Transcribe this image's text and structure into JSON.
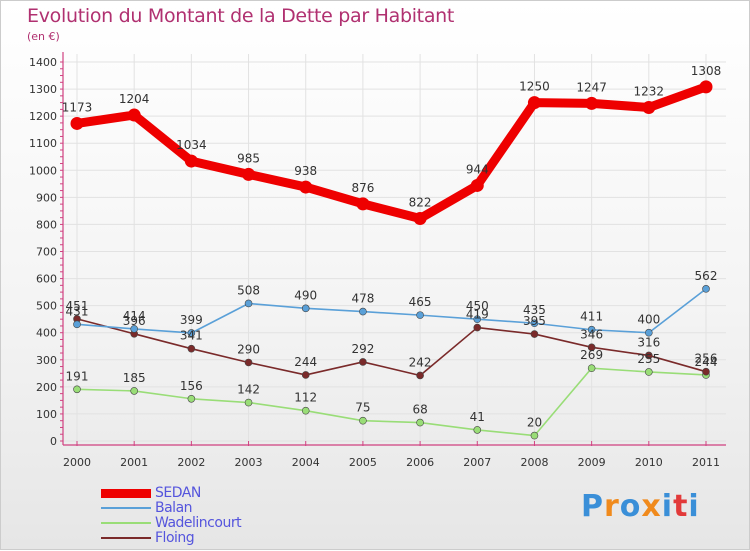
{
  "title": "Evolution du Montant de la Dette par Habitant",
  "subtitle": "(en €)",
  "logo": {
    "text": "Proxiti",
    "colors": [
      "#3a8fd8",
      "#f08a1c",
      "#3a8fd8",
      "#f08a1c",
      "#3a8fd8",
      "#e23a3a",
      "#3a8fd8"
    ]
  },
  "chart_data": {
    "type": "line",
    "x": [
      "2000",
      "2001",
      "2002",
      "2003",
      "2004",
      "2005",
      "2006",
      "2007",
      "2008",
      "2009",
      "2010",
      "2011"
    ],
    "ylim": [
      0,
      1400
    ],
    "yticks": [
      "0",
      "100",
      "200",
      "300",
      "400",
      "500",
      "600",
      "700",
      "800",
      "900",
      "1000",
      "1100",
      "1200",
      "1300",
      "1400"
    ],
    "grid": true,
    "legend_position": "bottom-left",
    "series": [
      {
        "name": "SEDAN",
        "color": "#ee0000",
        "values": [
          1173,
          1204,
          1034,
          985,
          938,
          876,
          822,
          944,
          1250,
          1247,
          1232,
          1308
        ],
        "labels": [
          "1173",
          "1204",
          "1034",
          "985",
          "938",
          "876",
          "822",
          "944",
          "1250",
          "1247",
          "1232",
          "1308"
        ]
      },
      {
        "name": "Balan",
        "color": "#5aa0d8",
        "values": [
          431,
          414,
          399,
          508,
          490,
          478,
          465,
          450,
          435,
          411,
          400,
          562
        ],
        "labels": [
          "431",
          "414",
          "399",
          "508",
          "490",
          "478",
          "465",
          "450",
          "435",
          "411",
          "400",
          "562"
        ]
      },
      {
        "name": "Wadelincourt",
        "color": "#99dd77",
        "values": [
          191,
          185,
          156,
          142,
          112,
          75,
          68,
          41,
          20,
          269,
          255,
          244
        ],
        "labels": [
          "191",
          "185",
          "156",
          "142",
          "112",
          "75",
          "68",
          "41",
          "20",
          "269",
          "255",
          "244"
        ]
      },
      {
        "name": "Floing",
        "color": "#7a2a2a",
        "values": [
          451,
          396,
          341,
          290,
          244,
          292,
          242,
          419,
          395,
          346,
          316,
          256
        ],
        "labels": [
          "451",
          "396",
          "341",
          "290",
          "244",
          "292",
          "242",
          "419",
          "395",
          "346",
          "316",
          "256"
        ]
      }
    ]
  }
}
